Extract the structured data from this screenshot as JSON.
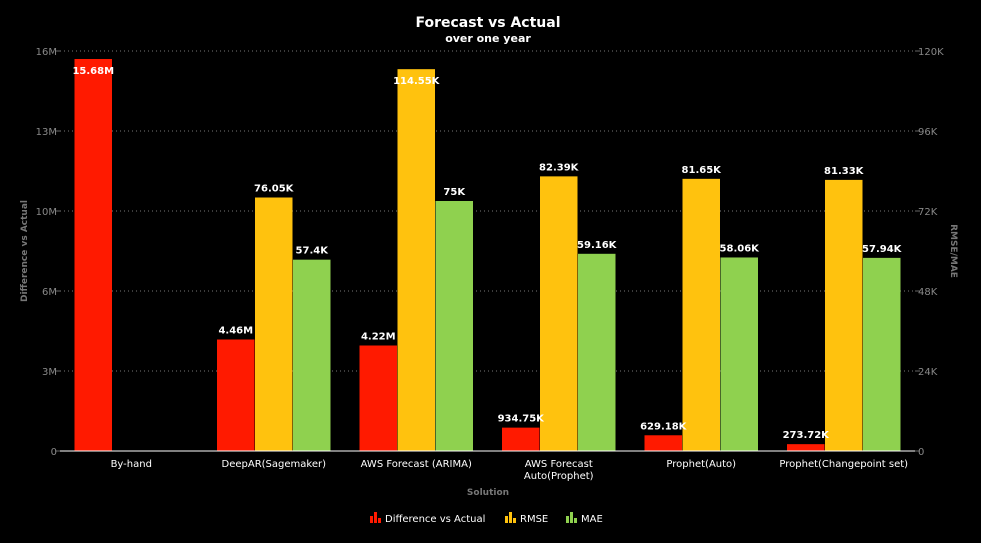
{
  "chart_data": {
    "type": "bar",
    "title": "Forecast vs Actual",
    "subtitle": "over one year",
    "xlabel": "Solution",
    "ylabel_left": "Difference vs Actual",
    "ylabel_right": "RMSE/MAE",
    "categories": [
      [
        "By-hand"
      ],
      [
        "DeepAR(Sagemaker)"
      ],
      [
        "AWS Forecast (ARIMA)"
      ],
      [
        "AWS Forecast",
        "Auto(Prophet)"
      ],
      [
        "Prophet(Auto)"
      ],
      [
        "Prophet(Changepoint set)"
      ]
    ],
    "left_axis": {
      "min": 0,
      "max": 16000000,
      "ticks": [
        "0",
        "3M",
        "6M",
        "10M",
        "13M",
        "16M"
      ]
    },
    "right_axis": {
      "min": 0,
      "max": 120000,
      "ticks": [
        "0",
        "24K",
        "48K",
        "72K",
        "96K",
        "120K"
      ]
    },
    "grid": true,
    "legend_position": "bottom",
    "series": [
      {
        "name": "Difference vs Actual",
        "axis": "left",
        "color": "#ff1a00",
        "values": [
          15680000,
          4460000,
          4220000,
          934750,
          629180,
          273720
        ],
        "labels": [
          "15.68M",
          "4.46M",
          "4.22M",
          "934.75K",
          "629.18K",
          "273.72K"
        ]
      },
      {
        "name": "RMSE",
        "axis": "right",
        "color": "#ffc20e",
        "values": [
          null,
          76050,
          114550,
          82390,
          81650,
          81330
        ],
        "labels": [
          "",
          "76.05K",
          "114.55K",
          "82.39K",
          "81.65K",
          "81.33K"
        ]
      },
      {
        "name": "MAE",
        "axis": "right",
        "color": "#8fd14f",
        "values": [
          null,
          57400,
          75000,
          59160,
          58060,
          57940
        ],
        "labels": [
          "",
          "57.4K",
          "75K",
          "59.16K",
          "58.06K",
          "57.94K"
        ]
      }
    ]
  }
}
